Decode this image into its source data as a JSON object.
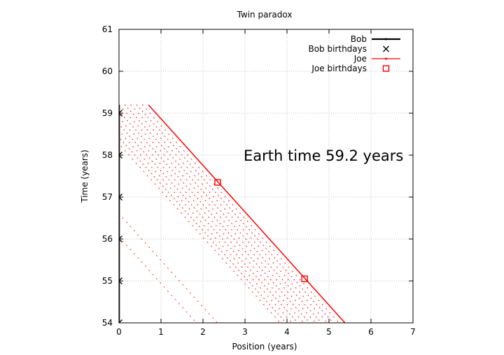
{
  "chart_data": {
    "type": "line",
    "title": "Twin paradox",
    "xlabel": "Position (years)",
    "ylabel": "Time (years)",
    "xlim": [
      0,
      7
    ],
    "ylim": [
      54,
      61
    ],
    "x_ticks": [
      0,
      1,
      2,
      3,
      4,
      5,
      6,
      7
    ],
    "y_ticks": [
      54,
      55,
      56,
      57,
      58,
      59,
      60,
      61
    ],
    "grid": true,
    "legend_position": "top-right",
    "annotation": "Earth time 59.2 years",
    "series": [
      {
        "name": "Bob",
        "kind": "line-points",
        "color": "#000000",
        "points": [
          [
            0,
            54
          ],
          [
            0,
            59.2
          ]
        ]
      },
      {
        "name": "Bob birthdays",
        "kind": "marker-x",
        "color": "#000000",
        "points": [
          [
            0,
            54
          ],
          [
            0,
            55
          ],
          [
            0,
            56
          ],
          [
            0,
            57
          ],
          [
            0,
            58
          ],
          [
            0,
            59
          ]
        ]
      },
      {
        "name": "Joe",
        "kind": "line-points",
        "color": "#ff0000",
        "points": [
          [
            0.7,
            59.2
          ],
          [
            5.38,
            54
          ]
        ]
      },
      {
        "name": "Joe birthdays",
        "kind": "marker-square",
        "color": "#ff0000",
        "points": [
          [
            2.35,
            57.35
          ],
          [
            4.42,
            55.05
          ]
        ]
      }
    ]
  }
}
